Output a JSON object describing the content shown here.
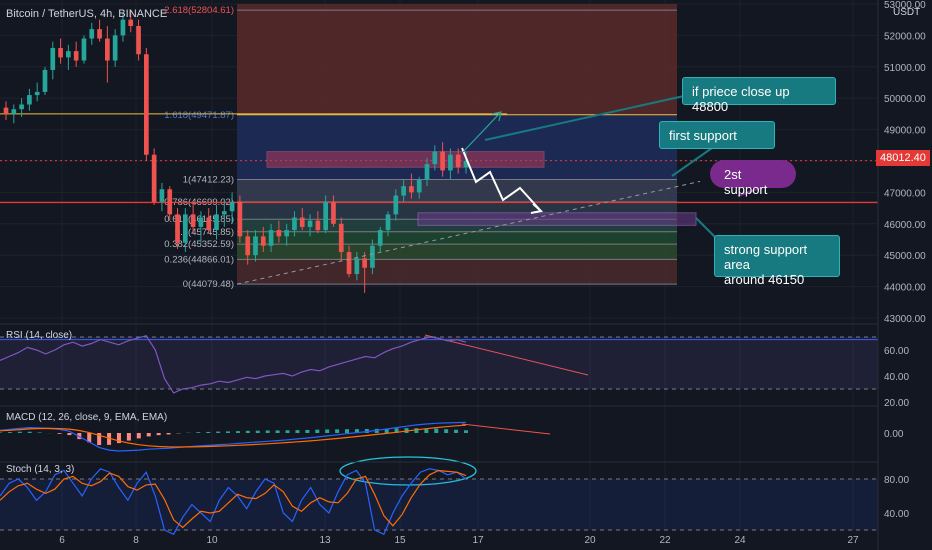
{
  "header": {
    "symbol": "Bitcoin / TetherUS, 4h, BINANCE",
    "currency": "USDT"
  },
  "colors": {
    "background": "#131722",
    "up": "#26a69a",
    "down": "#ef5350",
    "grid": "#1e2230",
    "rsi_line": "#7e57c2",
    "macd_line": "#2962ff",
    "signal_line": "#ff6d00",
    "stoch_k": "#2962ff",
    "stoch_d": "#ff6d00"
  },
  "chart_data": [
    {
      "type": "candlestick",
      "panel": "price",
      "ylim": [
        43000,
        53000
      ],
      "y_ticks": [
        "53000.00",
        "52000.00",
        "51000.00",
        "50000.00",
        "49000.00",
        "48000.00",
        "47000.00",
        "46000.00",
        "45000.00",
        "44000.00",
        "43000.00"
      ],
      "x_ticks": [
        "6",
        "8",
        "10",
        "13",
        "15",
        "17",
        "20",
        "22",
        "24",
        "27"
      ],
      "last_price": "48012.40",
      "ohlc": [
        [
          49700,
          49900,
          49300,
          49500
        ],
        [
          49500,
          49800,
          49200,
          49650
        ],
        [
          49650,
          50000,
          49400,
          49800
        ],
        [
          49800,
          50300,
          49600,
          50100
        ],
        [
          50100,
          50500,
          49900,
          50200
        ],
        [
          50200,
          51000,
          50100,
          50900
        ],
        [
          50900,
          51800,
          50600,
          51600
        ],
        [
          51600,
          51900,
          51100,
          51300
        ],
        [
          51300,
          51700,
          50900,
          51500
        ],
        [
          51500,
          51800,
          51000,
          51200
        ],
        [
          51200,
          52000,
          51100,
          51900
        ],
        [
          51900,
          52400,
          51700,
          52200
        ],
        [
          52200,
          52500,
          51800,
          51900
        ],
        [
          51900,
          52300,
          50500,
          51200
        ],
        [
          51200,
          52200,
          51000,
          52000
        ],
        [
          52000,
          52700,
          51800,
          52500
        ],
        [
          52500,
          52800,
          52100,
          52300
        ],
        [
          52300,
          52500,
          51200,
          51400
        ],
        [
          51400,
          51600,
          48000,
          48200
        ],
        [
          48200,
          48400,
          46600,
          46700
        ],
        [
          46700,
          47300,
          46400,
          47100
        ],
        [
          47100,
          47200,
          46100,
          46300
        ],
        [
          46300,
          46500,
          45200,
          45400
        ],
        [
          45400,
          46500,
          45100,
          46300
        ],
        [
          46300,
          46700,
          45700,
          45900
        ],
        [
          45900,
          46400,
          45400,
          46200
        ],
        [
          46200,
          46500,
          45700,
          45800
        ],
        [
          45800,
          46600,
          45500,
          46300
        ],
        [
          46300,
          46800,
          45900,
          46400
        ],
        [
          46400,
          47000,
          46000,
          46700
        ],
        [
          46700,
          46900,
          45400,
          45600
        ],
        [
          45600,
          45800,
          44700,
          45000
        ],
        [
          45000,
          45800,
          44800,
          45600
        ],
        [
          45600,
          45900,
          45100,
          45300
        ],
        [
          45300,
          46000,
          45100,
          45800
        ],
        [
          45800,
          46100,
          45400,
          45600
        ],
        [
          45600,
          46000,
          45300,
          45800
        ],
        [
          45800,
          46400,
          45600,
          46200
        ],
        [
          46200,
          46500,
          45800,
          45900
        ],
        [
          45900,
          46300,
          45600,
          46100
        ],
        [
          46100,
          46400,
          45700,
          45800
        ],
        [
          45800,
          46900,
          45700,
          46700
        ],
        [
          46700,
          46900,
          45900,
          46000
        ],
        [
          46000,
          46200,
          44800,
          45100
        ],
        [
          45100,
          45300,
          44300,
          44400
        ],
        [
          44400,
          45100,
          44200,
          44900
        ],
        [
          44900,
          45100,
          43800,
          44600
        ],
        [
          44600,
          45500,
          44400,
          45300
        ],
        [
          45300,
          45900,
          45100,
          45800
        ],
        [
          45800,
          46400,
          45600,
          46300
        ],
        [
          46300,
          47100,
          46100,
          46900
        ],
        [
          46900,
          47400,
          46700,
          47200
        ],
        [
          47200,
          47600,
          46800,
          47000
        ],
        [
          47000,
          47500,
          46800,
          47400
        ],
        [
          47400,
          48100,
          47200,
          47900
        ],
        [
          47900,
          48500,
          47700,
          48300
        ],
        [
          48300,
          48600,
          47500,
          47700
        ],
        [
          47700,
          48400,
          47400,
          48200
        ],
        [
          48200,
          48400,
          47600,
          47800
        ],
        [
          47800,
          48300,
          47600,
          48000
        ]
      ],
      "fib_levels": [
        {
          "label": "2.618(52804.61)",
          "price": 52804.61
        },
        {
          "label": "1.618(49471.87)",
          "price": 49471.87
        },
        {
          "label": "1(47412.23)",
          "price": 47412.23
        },
        {
          "label": "0.786(46699.02)",
          "price": 46699.02
        },
        {
          "label": "0.618(46145.85)",
          "price": 46145.85
        },
        {
          "label": "0.5(45745.85)",
          "price": 45745.85
        },
        {
          "label": "0.382(45352.59)",
          "price": 45352.59
        },
        {
          "label": "0.236(44866.01)",
          "price": 44866.01
        },
        {
          "label": "0(44079.48)",
          "price": 44079.48
        }
      ]
    },
    {
      "type": "line",
      "panel": "rsi",
      "title": "RSI (14, close)",
      "ylim": [
        20,
        80
      ],
      "y_ticks": [
        "60.00",
        "40.00",
        "20.00"
      ],
      "bands": [
        70,
        30
      ],
      "values": [
        52,
        55,
        58,
        62,
        60,
        57,
        60,
        64,
        66,
        63,
        65,
        68,
        66,
        64,
        67,
        69,
        71,
        60,
        38,
        27,
        30,
        31,
        33,
        34,
        36,
        35,
        37,
        39,
        38,
        40,
        41,
        42,
        40,
        43,
        45,
        44,
        47,
        49,
        51,
        53,
        55,
        54,
        58,
        61,
        63,
        66,
        68,
        70,
        69,
        67,
        68,
        66
      ]
    },
    {
      "type": "line",
      "panel": "macd",
      "title": "MACD (12, 26, close, 9, EMA, EMA)",
      "ylim": [
        -1500,
        1500
      ],
      "y_ticks": [
        "0.00"
      ],
      "macd": [
        150,
        200,
        260,
        300,
        280,
        250,
        200,
        100,
        -200,
        -500,
        -800,
        -950,
        -1000,
        -980,
        -950,
        -900,
        -870,
        -850,
        -800,
        -760,
        -720,
        -690,
        -650,
        -620,
        -580,
        -540,
        -500,
        -460,
        -420,
        -380,
        -330,
        -280,
        -220,
        -160,
        -100,
        -40,
        20,
        80,
        150,
        220,
        300,
        380,
        450,
        500,
        540,
        560,
        580,
        590
      ],
      "signal": [
        120,
        150,
        190,
        230,
        250,
        255,
        245,
        215,
        140,
        20,
        -130,
        -290,
        -440,
        -560,
        -650,
        -710,
        -750,
        -770,
        -780,
        -775,
        -765,
        -750,
        -730,
        -710,
        -685,
        -660,
        -630,
        -600,
        -565,
        -530,
        -490,
        -450,
        -405,
        -355,
        -305,
        -250,
        -195,
        -140,
        -80,
        -20,
        40,
        110,
        180,
        240,
        300,
        350,
        400,
        440
      ],
      "histogram": [
        30,
        50,
        70,
        70,
        30,
        -5,
        -45,
        -115,
        -340,
        -520,
        -670,
        -660,
        -560,
        -420,
        -300,
        -190,
        -120,
        -80,
        -20,
        15,
        45,
        60,
        80,
        90,
        105,
        120,
        130,
        140,
        145,
        150,
        160,
        170,
        185,
        195,
        205,
        210,
        215,
        220,
        230,
        240,
        260,
        270,
        270,
        260,
        240,
        210,
        180,
        150
      ]
    },
    {
      "type": "line",
      "panel": "stoch",
      "title": "Stoch (14, 3, 3)",
      "ylim": [
        20,
        100
      ],
      "y_ticks": [
        "80.00",
        "40.00"
      ],
      "bands": [
        80,
        20
      ],
      "k": [
        60,
        75,
        80,
        70,
        55,
        65,
        85,
        90,
        75,
        60,
        80,
        92,
        88,
        70,
        55,
        75,
        88,
        60,
        20,
        15,
        35,
        50,
        40,
        30,
        55,
        70,
        60,
        45,
        65,
        80,
        75,
        40,
        30,
        55,
        70,
        50,
        40,
        65,
        85,
        90,
        75,
        20,
        15,
        40,
        60,
        75,
        88,
        92,
        90,
        85,
        88,
        80
      ],
      "d": [
        55,
        65,
        72,
        75,
        68,
        63,
        68,
        80,
        83,
        75,
        72,
        77,
        87,
        83,
        71,
        67,
        73,
        74,
        56,
        32,
        23,
        33,
        42,
        40,
        42,
        52,
        62,
        58,
        57,
        63,
        73,
        65,
        48,
        42,
        52,
        58,
        53,
        52,
        63,
        80,
        83,
        62,
        37,
        25,
        38,
        58,
        74,
        85,
        90,
        89,
        88,
        84
      ]
    }
  ],
  "annotations": {
    "callout_1": "if priece close up 48800",
    "callout_2": "first support",
    "callout_3": "2st support",
    "callout_4_line1": "strong support area",
    "callout_4_line2": "around 46150"
  }
}
